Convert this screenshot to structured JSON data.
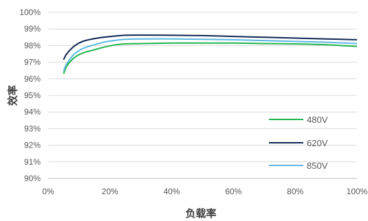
{
  "chart_data": {
    "type": "line",
    "xlabel": "负载率",
    "ylabel": "效率",
    "xlim": [
      0,
      100
    ],
    "ylim": [
      90,
      100
    ],
    "x_ticks": [
      "0%",
      "20%",
      "40%",
      "60%",
      "80%",
      "100%"
    ],
    "y_ticks": [
      "90%",
      "91%",
      "92%",
      "93%",
      "94%",
      "95%",
      "96%",
      "97%",
      "98%",
      "99%",
      "100%"
    ],
    "grid": true,
    "legend_position": "bottom-right",
    "series": [
      {
        "name": "480V",
        "color": "#1db34a",
        "x": [
          5,
          6,
          8,
          10,
          12,
          15,
          18,
          22,
          25,
          30,
          40,
          50,
          60,
          70,
          80,
          90,
          100
        ],
        "y": [
          96.3,
          96.75,
          97.2,
          97.45,
          97.6,
          97.75,
          97.9,
          98.05,
          98.1,
          98.12,
          98.15,
          98.15,
          98.15,
          98.12,
          98.1,
          98.05,
          97.95
        ]
      },
      {
        "name": "620V",
        "color": "#0e2452",
        "x": [
          5,
          6,
          8,
          10,
          12,
          15,
          18,
          22,
          25,
          30,
          40,
          50,
          60,
          70,
          80,
          90,
          100
        ],
        "y": [
          97.15,
          97.5,
          97.9,
          98.15,
          98.3,
          98.42,
          98.5,
          98.58,
          98.62,
          98.63,
          98.62,
          98.6,
          98.55,
          98.5,
          98.45,
          98.4,
          98.35
        ]
      },
      {
        "name": "850V",
        "color": "#5bb8e3",
        "x": [
          5,
          6,
          8,
          10,
          12,
          15,
          18,
          22,
          25,
          30,
          40,
          50,
          60,
          70,
          80,
          90,
          100
        ],
        "y": [
          96.45,
          96.9,
          97.4,
          97.7,
          97.88,
          98.05,
          98.2,
          98.32,
          98.38,
          98.4,
          98.4,
          98.38,
          98.35,
          98.3,
          98.25,
          98.2,
          98.12
        ]
      }
    ]
  }
}
